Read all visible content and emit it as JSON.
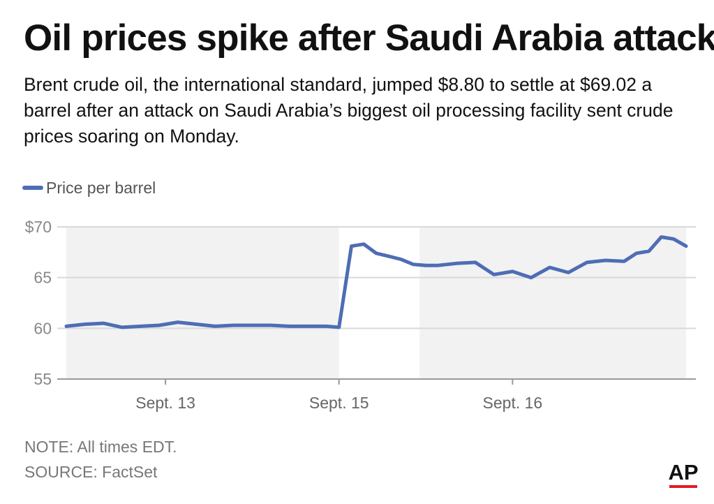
{
  "title": "Oil prices spike after Saudi Arabia attack",
  "subtitle": "Brent crude oil, the international standard, jumped $8.80 to settle at $69.02 a barrel after an attack on Saudi Arabia’s biggest oil processing facility sent crude prices soaring on Monday.",
  "note": "NOTE: All times EDT.",
  "source": "SOURCE: FactSet",
  "logo": "AP",
  "colors": {
    "line": "#4e6db5",
    "band": "#f2f2f2",
    "grid": "#d9d9d9",
    "axis": "#999999",
    "logo_bar": "#e31b23"
  },
  "chart_data": {
    "type": "line",
    "title": "",
    "xlabel": "",
    "ylabel": "",
    "ylim": [
      55,
      70
    ],
    "yticks": [
      55,
      60,
      65,
      70
    ],
    "ytick_labels": [
      "55",
      "60",
      "65",
      "$70"
    ],
    "xtick_labels": [
      "Sept. 13",
      "Sept. 15",
      "Sept. 16"
    ],
    "x_tick_positions": [
      16,
      44,
      72
    ],
    "xlim": [
      0,
      100
    ],
    "grid": true,
    "legend": "top-left",
    "shaded_sessions": [
      [
        0,
        44
      ],
      [
        57,
        100
      ]
    ],
    "series": [
      {
        "name": "Price per barrel",
        "x": [
          0,
          3,
          6,
          9,
          12,
          15,
          18,
          21,
          24,
          27,
          30,
          33,
          36,
          39,
          42,
          44,
          46,
          48,
          50,
          52,
          54,
          56,
          58,
          60,
          63,
          66,
          69,
          72,
          75,
          78,
          81,
          84,
          87,
          90,
          92,
          94,
          96,
          98,
          100
        ],
        "y": [
          60.2,
          60.4,
          60.5,
          60.1,
          60.2,
          60.3,
          60.6,
          60.4,
          60.2,
          60.3,
          60.3,
          60.3,
          60.2,
          60.2,
          60.2,
          60.1,
          68.1,
          68.3,
          67.4,
          67.1,
          66.8,
          66.3,
          66.2,
          66.2,
          66.4,
          66.5,
          65.3,
          65.6,
          65.0,
          66.0,
          65.5,
          66.5,
          66.7,
          66.6,
          67.4,
          67.6,
          69.0,
          68.8,
          68.1
        ]
      }
    ]
  }
}
